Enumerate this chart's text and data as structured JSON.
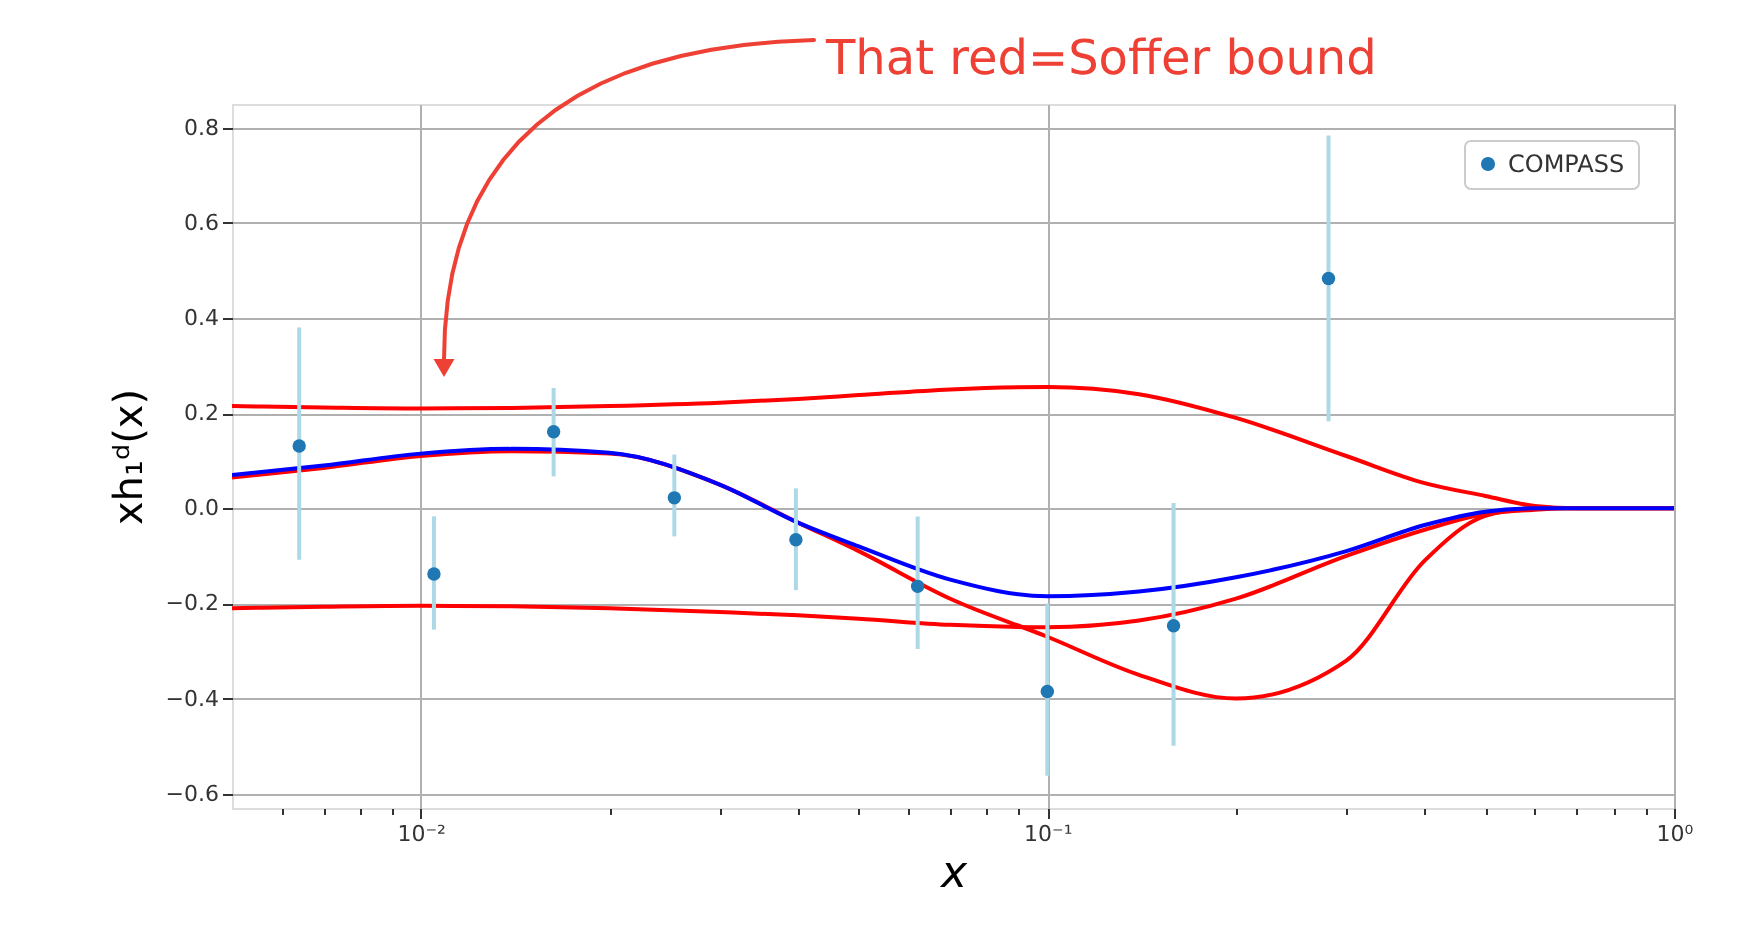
{
  "chart_data": {
    "type": "line",
    "xlabel": "x",
    "ylabel": "xh₁ᵈ(x)",
    "log": "x",
    "grid": true,
    "legend": "top right",
    "xlim": [
      0.005,
      1
    ],
    "ylim": [
      -0.63,
      0.85
    ],
    "xticks": [
      {
        "value": 0.006,
        "label": null
      },
      {
        "value": 0.007,
        "label": null
      },
      {
        "value": 0.008,
        "label": null
      },
      {
        "value": 0.009,
        "label": null
      },
      {
        "value": 0.01,
        "label": "10⁻²"
      },
      {
        "value": 0.02,
        "label": null
      },
      {
        "value": 0.03,
        "label": null
      },
      {
        "value": 0.04,
        "label": null
      },
      {
        "value": 0.05,
        "label": null
      },
      {
        "value": 0.06,
        "label": null
      },
      {
        "value": 0.07,
        "label": null
      },
      {
        "value": 0.08,
        "label": null
      },
      {
        "value": 0.09,
        "label": null
      },
      {
        "value": 0.1,
        "label": "10⁻¹"
      },
      {
        "value": 0.2,
        "label": null
      },
      {
        "value": 0.3,
        "label": null
      },
      {
        "value": 0.4,
        "label": null
      },
      {
        "value": 0.5,
        "label": null
      },
      {
        "value": 0.6,
        "label": null
      },
      {
        "value": 0.7,
        "label": null
      },
      {
        "value": 0.8,
        "label": null
      },
      {
        "value": 0.9,
        "label": null
      },
      {
        "value": 1,
        "label": "10⁰"
      }
    ],
    "yticks": [
      {
        "value": -0.6,
        "label": "−0.6"
      },
      {
        "value": -0.4,
        "label": "−0.4"
      },
      {
        "value": -0.2,
        "label": "−0.2"
      },
      {
        "value": 0,
        "label": "0.0"
      },
      0.2,
      0.4,
      0.6,
      0.8
    ],
    "annotations": [
      "That red=Soffer bound"
    ],
    "series": [
      {
        "color": "#ff0000",
        "x": [
          0.005,
          0.007,
          0.01,
          0.014,
          0.02,
          0.03,
          0.04,
          0.05,
          0.07,
          0.1,
          0.14,
          0.2,
          0.3,
          0.4,
          0.5,
          0.6,
          0.7,
          0.8,
          1.0
        ],
        "values": [
          0.215,
          0.212,
          0.21,
          0.211,
          0.215,
          0.222,
          0.23,
          0.238,
          0.25,
          0.255,
          0.24,
          0.19,
          0.11,
          0.053,
          0.026,
          0.005,
          0.0,
          0.0,
          0.0
        ]
      },
      {
        "color": "#ff0000",
        "x": [
          0.005,
          0.007,
          0.01,
          0.014,
          0.02,
          0.03,
          0.04,
          0.05,
          0.07,
          0.1,
          0.14,
          0.2,
          0.3,
          0.4,
          0.5,
          0.6,
          0.7,
          0.8,
          1.0
        ],
        "values": [
          -0.21,
          -0.207,
          -0.205,
          -0.206,
          -0.21,
          -0.218,
          -0.225,
          -0.232,
          -0.245,
          -0.25,
          -0.236,
          -0.19,
          -0.1,
          -0.045,
          -0.012,
          -0.003,
          0.0,
          0.0,
          0.0
        ]
      },
      {
        "color": "#ff0000",
        "x": [
          0.005,
          0.007,
          0.01,
          0.014,
          0.02,
          0.03,
          0.04,
          0.05,
          0.07,
          0.1,
          0.14,
          0.2,
          0.3,
          0.4,
          0.5,
          0.6,
          0.7,
          0.8,
          1.0
        ],
        "values": [
          0.065,
          0.085,
          0.11,
          0.12,
          0.115,
          0.05,
          -0.03,
          -0.09,
          -0.19,
          -0.27,
          -0.35,
          -0.4,
          -0.32,
          -0.11,
          -0.016,
          0.0,
          0.0,
          0.0,
          0.0
        ]
      },
      {
        "color": "#0000ff",
        "x": [
          0.005,
          0.007,
          0.01,
          0.014,
          0.02,
          0.03,
          0.04,
          0.05,
          0.07,
          0.1,
          0.14,
          0.2,
          0.3,
          0.4,
          0.5,
          0.6,
          0.7,
          0.8,
          1.0
        ],
        "values": [
          0.07,
          0.09,
          0.115,
          0.125,
          0.117,
          0.05,
          -0.03,
          -0.08,
          -0.15,
          -0.185,
          -0.175,
          -0.145,
          -0.09,
          -0.035,
          -0.007,
          0.0,
          0.0,
          0.0,
          0.0
        ]
      },
      {
        "type": "scatter",
        "name": "COMPASS",
        "color": "#1f77b4",
        "marker": "circle",
        "x": [
          0.0064,
          0.0105,
          0.0163,
          0.0254,
          0.0397,
          0.0621,
          0.1,
          0.159,
          0.281
        ],
        "values": [
          0.131,
          -0.138,
          0.161,
          0.022,
          -0.066,
          -0.164,
          -0.385,
          -0.247,
          0.483
        ],
        "errors": [
          [
            -0.108,
            0.38
          ],
          [
            -0.255,
            -0.017
          ],
          [
            0.067,
            0.253
          ],
          [
            -0.059,
            0.113
          ],
          [
            -0.172,
            0.042
          ],
          [
            -0.296,
            -0.017
          ],
          [
            -0.562,
            -0.2
          ],
          [
            -0.499,
            0.011
          ],
          [
            0.183,
            0.784
          ]
        ]
      }
    ]
  }
}
